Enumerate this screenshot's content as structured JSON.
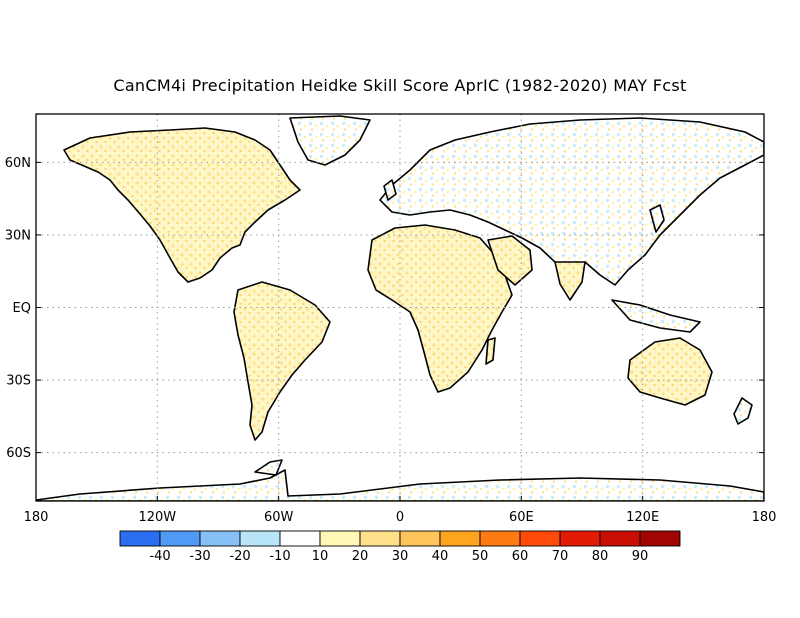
{
  "title": "CanCM4i Precipitation Heidke Skill Score AprIC (1982-2020) MAY Fcst",
  "map": {
    "type": "world-map",
    "projection": "equirectangular",
    "lon_range": [
      -180,
      180
    ],
    "lat_range": [
      -90,
      90
    ],
    "gridlines": "dotted",
    "lat_tick_labels": [
      "60N",
      "30N",
      "EQ",
      "30S",
      "60S"
    ],
    "lon_tick_labels": [
      "180",
      "120W",
      "60W",
      "0",
      "60E",
      "120E",
      "180"
    ]
  },
  "colorbar": {
    "colors": [
      "#2a6ff2",
      "#4f9af4",
      "#86c0f7",
      "#b8e6f8",
      "#ffffff",
      "#fff7b6",
      "#ffe08a",
      "#ffc45a",
      "#ffa41e",
      "#ff7a12",
      "#ff4a0a",
      "#e31b06",
      "#c80e05",
      "#a00504"
    ],
    "labels": [
      "-40",
      "-30",
      "-20",
      "-10",
      "10",
      "20",
      "30",
      "40",
      "50",
      "60",
      "70",
      "80",
      "90"
    ]
  }
}
